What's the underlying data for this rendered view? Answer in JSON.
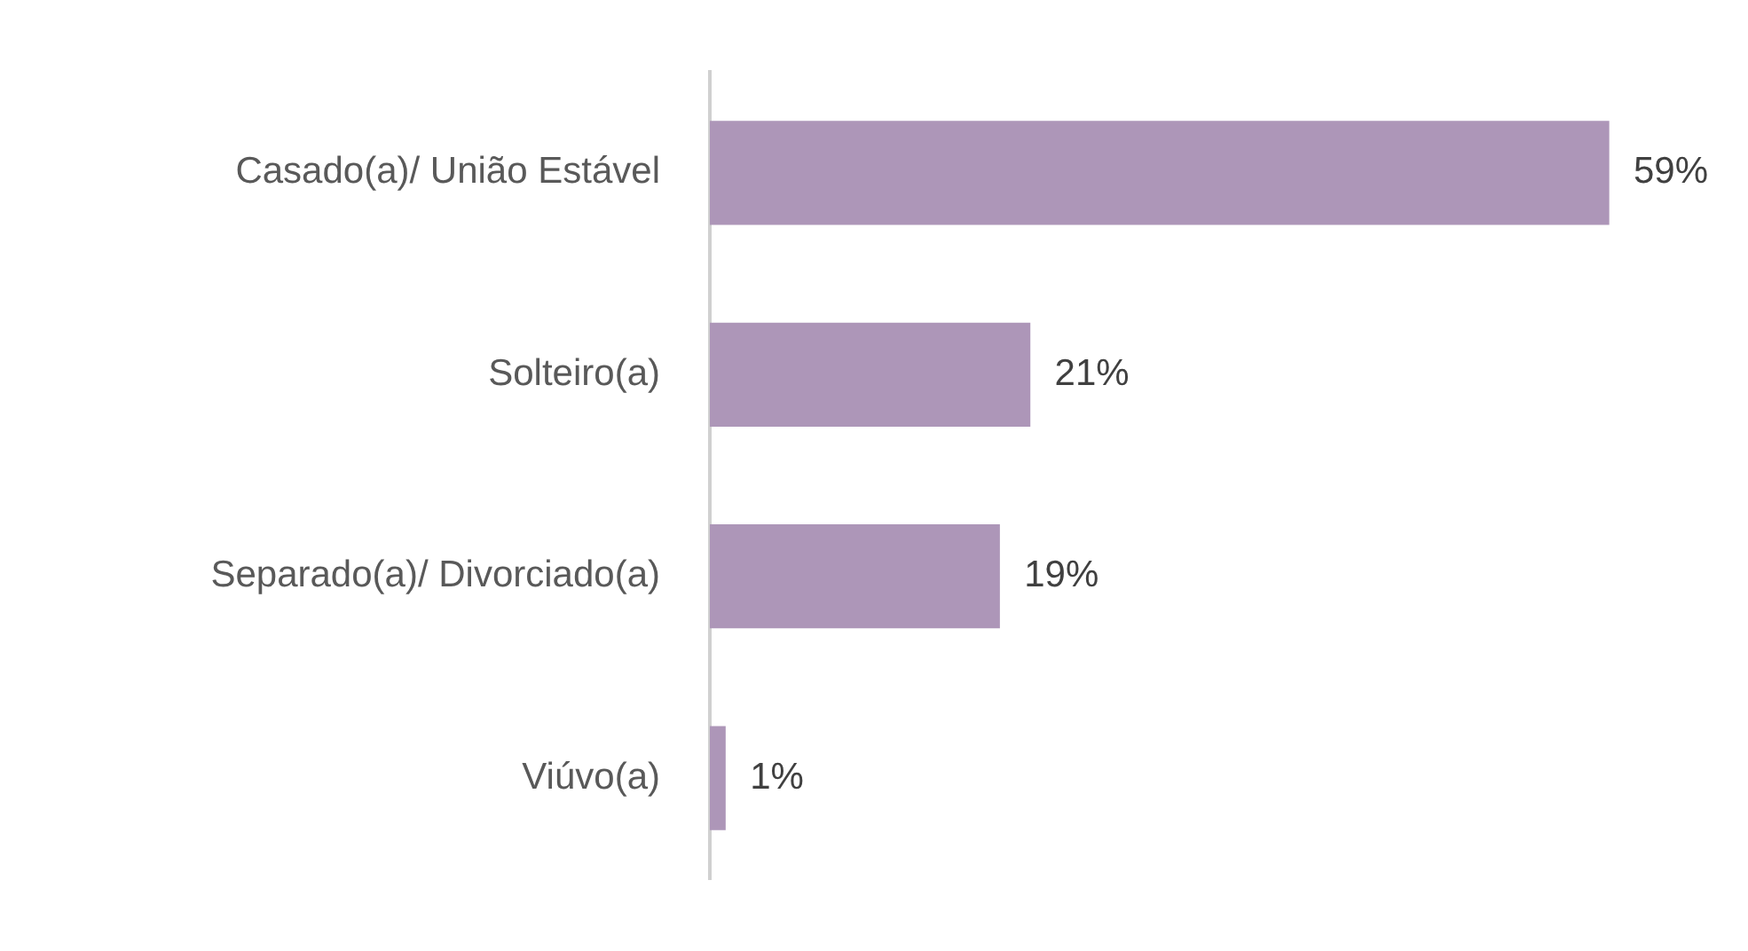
{
  "chart_data": {
    "type": "bar",
    "orientation": "horizontal",
    "categories": [
      "Casado(a)/ União Estável",
      "Solteiro(a)",
      "Separado(a)/ Divorciado(a)",
      "Viúvo(a)"
    ],
    "values": [
      59,
      21,
      19,
      1
    ],
    "value_labels": [
      "59%",
      "21%",
      "19%",
      "1%"
    ],
    "color": "#ad96b8"
  }
}
